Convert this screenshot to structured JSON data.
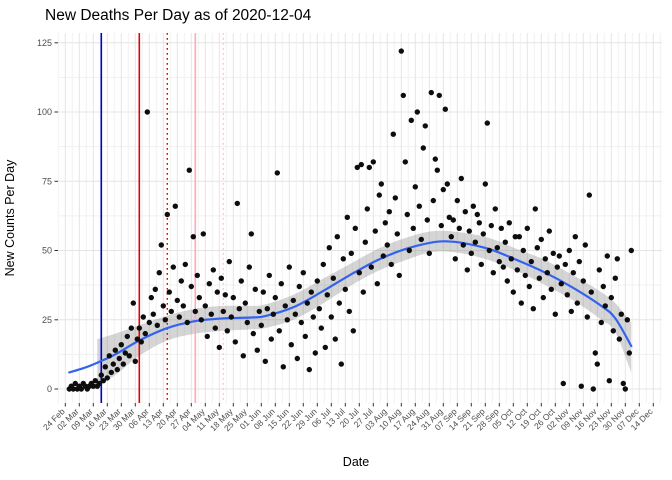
{
  "page": {
    "background": "#ffffff"
  },
  "chart_data": {
    "type": "scatter",
    "title": "New Deaths Per Day as of 2020-12-04",
    "xlabel": "Date",
    "ylabel": "New Counts Per Day",
    "x_epoch": "2020-02-24",
    "x_tick_interval_days": 7,
    "x_tick_labels": [
      "24 Feb",
      "02 Mar",
      "09 Mar",
      "16 Mar",
      "23 Mar",
      "30 Mar",
      "06 Apr",
      "13 Apr",
      "20 Apr",
      "27 Apr",
      "04 May",
      "11 May",
      "18 May",
      "25 May",
      "01 Jun",
      "08 Jun",
      "15 Jun",
      "22 Jun",
      "29 Jun",
      "06 Jul",
      "13 Jul",
      "20 Jul",
      "27 Jul",
      "03 Aug",
      "10 Aug",
      "17 Aug",
      "24 Aug",
      "31 Aug",
      "07 Sep",
      "14 Sep",
      "21 Sep",
      "28 Sep",
      "05 Oct",
      "12 Oct",
      "19 Oct",
      "26 Oct",
      "02 Nov",
      "09 Nov",
      "16 Nov",
      "23 Nov",
      "30 Nov",
      "07 Dec",
      "14 Dec"
    ],
    "y_ticks": [
      0,
      25,
      50,
      75,
      100,
      125
    ],
    "ylim": [
      -5,
      128
    ],
    "grid": {
      "major": true,
      "minor": true
    },
    "legend": "none",
    "styles": {
      "point_color": "#0d0d0d",
      "smooth_line_color": "#3363EE",
      "ribbon_color": "rgba(125,125,125,0.32)",
      "grid_major_color": "#e4e4e4",
      "grid_minor_color": "#f1f1f1",
      "tick_mark_color": "#333333",
      "tick_label_color": "#4d4d4d",
      "title_color": "#000000"
    },
    "vlines": [
      {
        "day": 18,
        "date": "2020-03-13",
        "color": "#0000CD",
        "style": "solid",
        "name": "blue-reference-line"
      },
      {
        "day": 37,
        "date": "2020-04-01",
        "color": "#E60000",
        "style": "solid",
        "name": "red-reference-line"
      },
      {
        "day": 51,
        "date": "2020-04-15",
        "color": "#E60000",
        "style": "dotted",
        "name": "red-dotted-reference-line"
      },
      {
        "day": 65,
        "date": "2020-04-29",
        "color": "#FFA9BB",
        "style": "solid",
        "name": "pink-reference-line"
      },
      {
        "day": 79,
        "date": "2020-05-13",
        "color": "#FFC4CF",
        "style": "dotted",
        "name": "pink-dotted-reference-line"
      }
    ],
    "smooth_line": [
      [
        2,
        6
      ],
      [
        9,
        7.5
      ],
      [
        16,
        9.5
      ],
      [
        25,
        12.5
      ],
      [
        37,
        17.5
      ],
      [
        51,
        22
      ],
      [
        65,
        24.5
      ],
      [
        79,
        25.5
      ],
      [
        93,
        25.8
      ],
      [
        100,
        26.3
      ],
      [
        114,
        29.5
      ],
      [
        128,
        35
      ],
      [
        142,
        41
      ],
      [
        156,
        46.5
      ],
      [
        170,
        50.5
      ],
      [
        184,
        53
      ],
      [
        191,
        53.3
      ],
      [
        198,
        52.8
      ],
      [
        212,
        50.5
      ],
      [
        226,
        46.5
      ],
      [
        240,
        42
      ],
      [
        254,
        36.5
      ],
      [
        268,
        30
      ],
      [
        275,
        25.5
      ],
      [
        283,
        15.5
      ]
    ],
    "ribbon": [
      [
        16,
        1,
        18
      ],
      [
        25,
        5,
        20
      ],
      [
        37,
        12,
        23
      ],
      [
        51,
        17.5,
        26.5
      ],
      [
        65,
        20,
        29
      ],
      [
        79,
        21,
        30
      ],
      [
        93,
        21.5,
        30
      ],
      [
        100,
        22,
        30.5
      ],
      [
        114,
        25,
        34
      ],
      [
        128,
        30.5,
        39.5
      ],
      [
        142,
        37,
        45
      ],
      [
        156,
        42.5,
        50.5
      ],
      [
        170,
        46.5,
        54.5
      ],
      [
        184,
        49.5,
        57
      ],
      [
        198,
        49,
        56.5
      ],
      [
        212,
        46.5,
        54.5
      ],
      [
        226,
        42.5,
        50.5
      ],
      [
        240,
        37.5,
        46.5
      ],
      [
        254,
        32,
        41
      ],
      [
        268,
        25,
        35
      ],
      [
        275,
        20.5,
        31
      ],
      [
        283,
        6,
        24
      ]
    ],
    "points": [
      [
        2,
        0
      ],
      [
        3,
        1
      ],
      [
        4,
        0
      ],
      [
        5,
        2
      ],
      [
        6,
        0
      ],
      [
        7,
        1
      ],
      [
        8,
        0
      ],
      [
        9,
        2
      ],
      [
        10,
        1
      ],
      [
        11,
        0
      ],
      [
        12,
        1
      ],
      [
        13,
        2
      ],
      [
        14,
        1
      ],
      [
        15,
        3
      ],
      [
        16,
        1
      ],
      [
        17,
        2
      ],
      [
        18,
        5
      ],
      [
        19,
        3
      ],
      [
        20,
        8
      ],
      [
        21,
        4
      ],
      [
        22,
        12
      ],
      [
        23,
        6
      ],
      [
        24,
        9
      ],
      [
        25,
        14
      ],
      [
        26,
        7
      ],
      [
        27,
        11
      ],
      [
        28,
        16
      ],
      [
        29,
        9
      ],
      [
        30,
        13
      ],
      [
        31,
        19
      ],
      [
        32,
        12
      ],
      [
        33,
        22
      ],
      [
        34,
        31
      ],
      [
        35,
        10
      ],
      [
        36,
        18
      ],
      [
        37,
        22
      ],
      [
        38,
        17
      ],
      [
        39,
        26
      ],
      [
        40,
        20
      ],
      [
        41,
        100
      ],
      [
        42,
        24
      ],
      [
        43,
        33
      ],
      [
        44,
        27
      ],
      [
        45,
        36
      ],
      [
        46,
        23
      ],
      [
        47,
        42
      ],
      [
        48,
        52
      ],
      [
        49,
        30
      ],
      [
        50,
        25
      ],
      [
        51,
        63
      ],
      [
        52,
        35
      ],
      [
        53,
        28
      ],
      [
        54,
        44
      ],
      [
        55,
        66
      ],
      [
        56,
        32
      ],
      [
        57,
        26
      ],
      [
        58,
        39
      ],
      [
        59,
        30
      ],
      [
        60,
        45
      ],
      [
        61,
        24
      ],
      [
        62,
        79
      ],
      [
        63,
        37
      ],
      [
        64,
        55
      ],
      [
        65,
        28
      ],
      [
        66,
        41
      ],
      [
        67,
        33
      ],
      [
        68,
        25
      ],
      [
        69,
        56
      ],
      [
        70,
        30
      ],
      [
        71,
        19
      ],
      [
        72,
        38
      ],
      [
        73,
        27
      ],
      [
        74,
        43
      ],
      [
        75,
        22
      ],
      [
        76,
        35
      ],
      [
        77,
        15
      ],
      [
        78,
        40
      ],
      [
        79,
        28
      ],
      [
        80,
        34
      ],
      [
        81,
        21
      ],
      [
        82,
        46
      ],
      [
        83,
        26
      ],
      [
        84,
        33
      ],
      [
        85,
        17
      ],
      [
        86,
        67
      ],
      [
        87,
        29
      ],
      [
        88,
        39
      ],
      [
        89,
        12
      ],
      [
        90,
        31
      ],
      [
        91,
        24
      ],
      [
        92,
        44
      ],
      [
        93,
        56
      ],
      [
        94,
        20
      ],
      [
        95,
        36
      ],
      [
        96,
        14
      ],
      [
        97,
        28
      ],
      [
        98,
        23
      ],
      [
        99,
        35
      ],
      [
        100,
        10
      ],
      [
        101,
        29
      ],
      [
        102,
        41
      ],
      [
        103,
        18
      ],
      [
        104,
        27
      ],
      [
        105,
        33
      ],
      [
        106,
        78
      ],
      [
        107,
        21
      ],
      [
        108,
        38
      ],
      [
        109,
        8
      ],
      [
        110,
        30
      ],
      [
        111,
        25
      ],
      [
        112,
        44
      ],
      [
        113,
        16
      ],
      [
        114,
        32
      ],
      [
        115,
        27
      ],
      [
        116,
        11
      ],
      [
        117,
        37
      ],
      [
        118,
        24
      ],
      [
        119,
        42
      ],
      [
        120,
        19
      ],
      [
        121,
        31
      ],
      [
        122,
        7
      ],
      [
        123,
        35
      ],
      [
        124,
        26
      ],
      [
        125,
        13
      ],
      [
        126,
        39
      ],
      [
        127,
        29
      ],
      [
        128,
        22
      ],
      [
        129,
        45
      ],
      [
        130,
        15
      ],
      [
        131,
        34
      ],
      [
        132,
        51
      ],
      [
        133,
        26
      ],
      [
        134,
        40
      ],
      [
        135,
        18
      ],
      [
        136,
        55
      ],
      [
        137,
        31
      ],
      [
        138,
        9
      ],
      [
        139,
        47
      ],
      [
        140,
        36
      ],
      [
        141,
        62
      ],
      [
        142,
        28
      ],
      [
        143,
        49
      ],
      [
        144,
        21
      ],
      [
        145,
        58
      ],
      [
        146,
        80
      ],
      [
        147,
        42
      ],
      [
        148,
        81
      ],
      [
        149,
        35
      ],
      [
        150,
        53
      ],
      [
        151,
        65
      ],
      [
        152,
        80
      ],
      [
        153,
        44
      ],
      [
        154,
        82
      ],
      [
        155,
        57
      ],
      [
        156,
        38
      ],
      [
        157,
        70
      ],
      [
        158,
        74
      ],
      [
        159,
        48
      ],
      [
        160,
        60
      ],
      [
        161,
        52
      ],
      [
        162,
        64
      ],
      [
        163,
        45
      ],
      [
        164,
        92
      ],
      [
        165,
        69
      ],
      [
        166,
        56
      ],
      [
        167,
        41
      ],
      [
        168,
        122
      ],
      [
        169,
        106
      ],
      [
        170,
        82
      ],
      [
        171,
        63
      ],
      [
        172,
        50
      ],
      [
        173,
        97
      ],
      [
        174,
        58
      ],
      [
        175,
        73
      ],
      [
        176,
        100
      ],
      [
        177,
        66
      ],
      [
        178,
        54
      ],
      [
        179,
        87
      ],
      [
        180,
        95
      ],
      [
        181,
        61
      ],
      [
        182,
        49
      ],
      [
        183,
        107
      ],
      [
        184,
        68
      ],
      [
        185,
        83
      ],
      [
        186,
        79
      ],
      [
        187,
        106
      ],
      [
        188,
        59
      ],
      [
        189,
        72
      ],
      [
        190,
        101
      ],
      [
        191,
        74
      ],
      [
        192,
        62
      ],
      [
        193,
        55
      ],
      [
        194,
        61
      ],
      [
        195,
        47
      ],
      [
        196,
        68
      ],
      [
        197,
        58
      ],
      [
        198,
        76
      ],
      [
        199,
        52
      ],
      [
        200,
        64
      ],
      [
        201,
        43
      ],
      [
        202,
        57
      ],
      [
        203,
        49
      ],
      [
        204,
        66
      ],
      [
        205,
        53
      ],
      [
        206,
        63
      ],
      [
        207,
        60
      ],
      [
        208,
        45
      ],
      [
        209,
        56
      ],
      [
        210,
        74
      ],
      [
        211,
        96
      ],
      [
        212,
        50
      ],
      [
        213,
        59
      ],
      [
        214,
        42
      ],
      [
        215,
        65
      ],
      [
        216,
        51
      ],
      [
        217,
        46
      ],
      [
        218,
        58
      ],
      [
        219,
        44
      ],
      [
        220,
        53
      ],
      [
        221,
        39
      ],
      [
        222,
        60
      ],
      [
        223,
        47
      ],
      [
        224,
        35
      ],
      [
        225,
        55
      ],
      [
        226,
        43
      ],
      [
        227,
        55
      ],
      [
        228,
        31
      ],
      [
        229,
        50
      ],
      [
        230,
        41
      ],
      [
        231,
        58
      ],
      [
        232,
        37
      ],
      [
        233,
        46
      ],
      [
        234,
        29
      ],
      [
        235,
        65
      ],
      [
        236,
        51
      ],
      [
        237,
        40
      ],
      [
        238,
        54
      ],
      [
        239,
        33
      ],
      [
        240,
        47
      ],
      [
        241,
        42
      ],
      [
        242,
        57
      ],
      [
        243,
        36
      ],
      [
        244,
        49
      ],
      [
        245,
        27
      ],
      [
        246,
        44
      ],
      [
        247,
        48
      ],
      [
        248,
        38
      ],
      [
        249,
        2
      ],
      [
        250,
        45
      ],
      [
        251,
        34
      ],
      [
        252,
        50
      ],
      [
        253,
        28
      ],
      [
        254,
        42
      ],
      [
        255,
        55
      ],
      [
        256,
        31
      ],
      [
        257,
        46
      ],
      [
        258,
        1
      ],
      [
        259,
        39
      ],
      [
        260,
        52
      ],
      [
        261,
        26
      ],
      [
        262,
        70
      ],
      [
        263,
        35
      ],
      [
        264,
        0
      ],
      [
        265,
        13
      ],
      [
        266,
        9
      ],
      [
        267,
        43
      ],
      [
        268,
        24
      ],
      [
        269,
        37
      ],
      [
        270,
        30
      ],
      [
        271,
        48
      ],
      [
        272,
        3
      ],
      [
        273,
        33
      ],
      [
        274,
        21
      ],
      [
        275,
        40
      ],
      [
        276,
        47
      ],
      [
        277,
        18
      ],
      [
        278,
        27
      ],
      [
        279,
        2
      ],
      [
        280,
        0
      ],
      [
        281,
        25
      ],
      [
        282,
        13
      ],
      [
        283,
        50
      ]
    ]
  }
}
